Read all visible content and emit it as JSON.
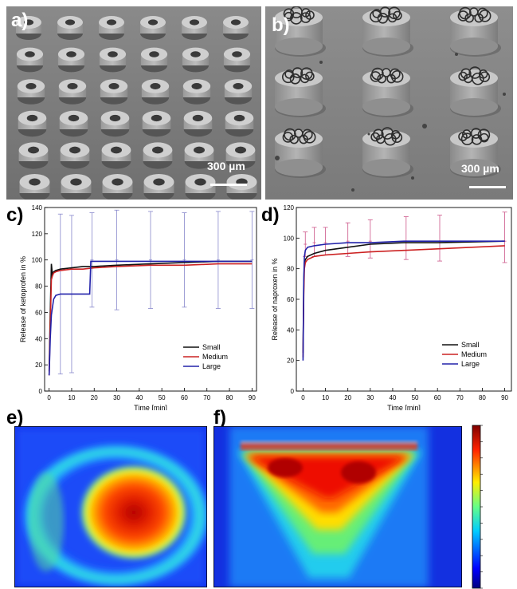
{
  "panels": {
    "a": {
      "letter": "a)",
      "scale": "300 µm"
    },
    "b": {
      "letter": "b)",
      "scale": "300 µm"
    },
    "c": {
      "letter": "c)"
    },
    "d": {
      "letter": "d)"
    },
    "e": {
      "letter": "e)"
    },
    "f": {
      "letter": "f)"
    }
  },
  "colors": {
    "small": "#111111",
    "medium": "#cc2222",
    "large": "#2222aa",
    "errorbar_c": "#8888cc",
    "errorbar_d": "#cc5588"
  },
  "chart_data": [
    {
      "type": "line",
      "panel": "c",
      "xlabel": "Time [min]",
      "ylabel": "Release of ketoprofen in %",
      "xlim": [
        -2,
        92
      ],
      "ylim": [
        0,
        140
      ],
      "xticks": [
        0,
        10,
        20,
        30,
        40,
        50,
        60,
        70,
        80,
        90
      ],
      "yticks": [
        0,
        20,
        40,
        60,
        80,
        100,
        120,
        140
      ],
      "legend_position": "bottom-right",
      "series": [
        {
          "name": "Small",
          "color": "#111111",
          "x": [
            0,
            0.5,
            1,
            1.5,
            2,
            3,
            5,
            10,
            15,
            20,
            30,
            45,
            60,
            75,
            90
          ],
          "y": [
            15,
            60,
            97,
            88,
            91,
            92,
            93,
            94,
            95,
            95,
            96,
            97,
            98,
            99,
            99
          ]
        },
        {
          "name": "Medium",
          "color": "#cc2222",
          "x": [
            0,
            0.5,
            1,
            1.5,
            2,
            3,
            5,
            10,
            15,
            20,
            30,
            45,
            60,
            75,
            90
          ],
          "y": [
            12,
            50,
            85,
            88,
            90,
            91,
            92,
            93,
            93,
            94,
            95,
            96,
            96,
            97,
            97
          ]
        },
        {
          "name": "Large",
          "color": "#2222aa",
          "x": [
            0,
            0.5,
            1,
            2,
            3,
            5,
            10,
            15,
            18,
            18.5,
            20,
            30,
            45,
            60,
            75,
            90
          ],
          "y": [
            12,
            40,
            58,
            70,
            73,
            74,
            74,
            74,
            74,
            99,
            99,
            99,
            99,
            99,
            99,
            99
          ]
        }
      ],
      "error_bars": {
        "x": [
          5,
          10,
          19,
          30,
          45,
          60,
          75,
          90
        ],
        "center": [
          74,
          74,
          100,
          100,
          100,
          100,
          100,
          100
        ],
        "high": [
          135,
          134,
          136,
          138,
          137,
          136,
          137,
          137
        ],
        "low": [
          13,
          14,
          64,
          62,
          63,
          64,
          63,
          63
        ]
      }
    },
    {
      "type": "line",
      "panel": "d",
      "xlabel": "Time [min]",
      "ylabel": "Release of naproxen in %",
      "xlim": [
        -3,
        93
      ],
      "ylim": [
        0,
        120
      ],
      "xticks": [
        0,
        10,
        20,
        30,
        40,
        50,
        60,
        70,
        80,
        90
      ],
      "yticks": [
        0,
        20,
        40,
        60,
        80,
        100,
        120
      ],
      "legend_position": "bottom-right",
      "series": [
        {
          "name": "Small",
          "color": "#111111",
          "x": [
            0,
            0.3,
            0.6,
            1,
            2,
            5,
            10,
            20,
            30,
            45,
            60,
            90
          ],
          "y": [
            25,
            70,
            84,
            86,
            88,
            90,
            92,
            94,
            96,
            97,
            97,
            98
          ]
        },
        {
          "name": "Medium",
          "color": "#cc2222",
          "x": [
            0,
            0.3,
            0.6,
            1,
            2,
            5,
            10,
            20,
            30,
            45,
            60,
            90
          ],
          "y": [
            22,
            62,
            80,
            84,
            86,
            88,
            89,
            90,
            91,
            92,
            93,
            95
          ]
        },
        {
          "name": "Large",
          "color": "#2222aa",
          "x": [
            0,
            0.3,
            0.6,
            1,
            2,
            5,
            10,
            20,
            30,
            45,
            60,
            90
          ],
          "y": [
            20,
            72,
            88,
            92,
            94,
            95,
            96,
            97,
            97,
            98,
            98,
            98
          ]
        }
      ],
      "error_bars": {
        "x": [
          1,
          5,
          10,
          20,
          30,
          46,
          61,
          90
        ],
        "center": [
          96,
          97,
          97,
          98,
          98,
          98,
          98,
          98
        ],
        "high": [
          104,
          107,
          107,
          110,
          112,
          114,
          115,
          117
        ],
        "low": [
          88,
          88,
          89,
          88,
          87,
          86,
          85,
          84
        ]
      }
    },
    {
      "type": "heatmap",
      "panel": "e",
      "description_shape": "circular hotspot right of center with surrounding ring"
    },
    {
      "type": "heatmap",
      "panel": "f",
      "colorbar": true
    }
  ]
}
